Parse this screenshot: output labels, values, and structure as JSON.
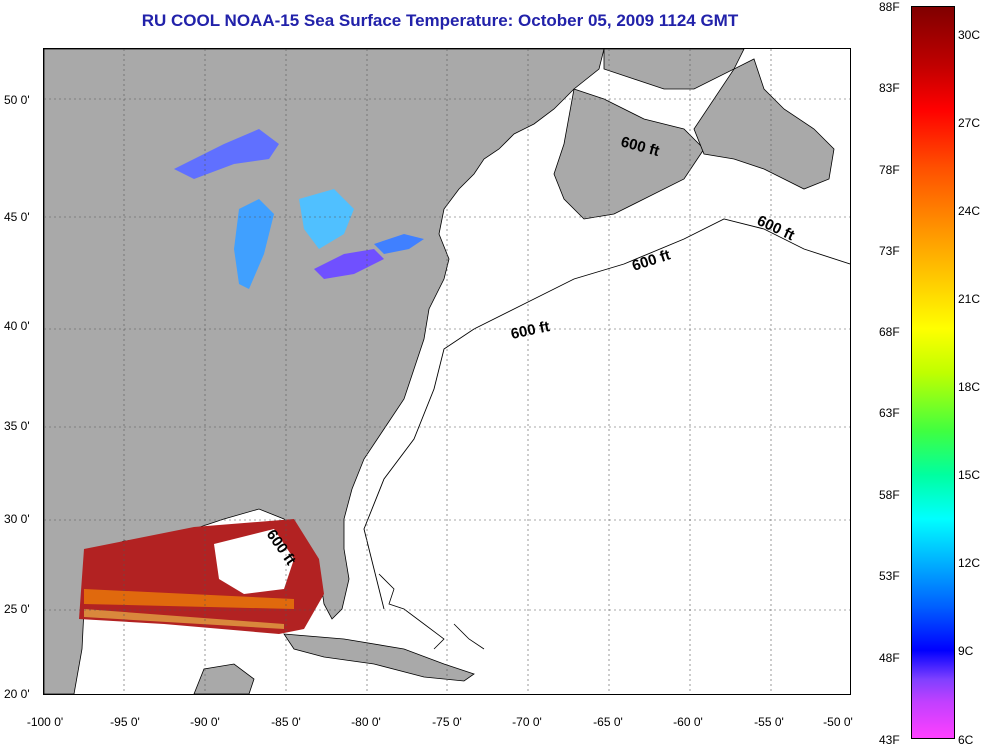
{
  "title": "RU COOL  NOAA-15  Sea Surface Temperature:  October 05, 2009 1124 GMT",
  "x_ticks": [
    "-100 0'",
    "-95 0'",
    "-90 0'",
    "-85 0'",
    "-80 0'",
    "-75 0'",
    "-70 0'",
    "-65 0'",
    "-60 0'",
    "-55 0'",
    "-50 0'"
  ],
  "y_ticks": [
    "50 0'",
    "45 0'",
    "40 0'",
    "35 0'",
    "30 0'",
    "25 0'",
    "20 0'"
  ],
  "isobath_label": "600 ft",
  "colorbar": {
    "fahrenheit": [
      "88F",
      "83F",
      "78F",
      "73F",
      "68F",
      "63F",
      "58F",
      "53F",
      "48F",
      "43F"
    ],
    "celsius": [
      "30C",
      "27C",
      "24C",
      "21C",
      "18C",
      "15C",
      "12C",
      "9C",
      "6C"
    ]
  },
  "colors": {
    "land": "#a9a9a9",
    "title": "#2222aa",
    "warm_sst": "#b22222",
    "cool_sst": "#4060ff"
  }
}
